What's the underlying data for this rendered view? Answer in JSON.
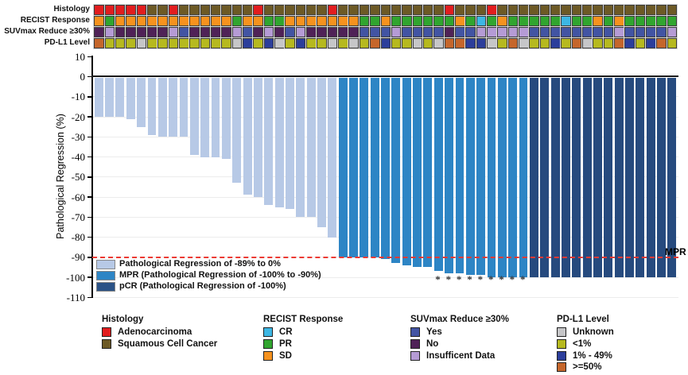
{
  "tracks": {
    "rows": [
      {
        "label": "Histology",
        "codes": "AAAAASSASSSSSSSASSSSSSASSSSSSSSSSASSSASSSSSSSSSSSSSSSSS",
        "palette": {
          "A": "#e21d1f",
          "S": "#6d5a26"
        }
      },
      {
        "label": "RECIST Response",
        "codes": "DPDDDDDDDDDDDPDDPPDDDDDDDPPDPPPPPPDPCPDPPPPPCPPDPDPPPPP",
        "palette": {
          "D": "#f6921e",
          "P": "#31a52f",
          "C": "#3db7e4"
        }
      },
      {
        "label": "SUVmax Reduce ≥30%",
        "codes": "NINNNNNIYNNNNIYNINYINNNNNYYYIYYYYNYYIIIIIYYYYYYYYIYYYYI",
        "palette": {
          "Y": "#4254a3",
          "N": "#4f2257",
          "I": "#b59bd5"
        }
      },
      {
        "label": "PD-L1 Level",
        "codes": "HLLLULLLLLLLLUMLMULMLLULULHMLLULUHHMMULHULLMLHULLHMLMHL",
        "palette": {
          "U": "#c6c6c8",
          "L": "#b6b91f",
          "M": "#2c3e9b",
          "H": "#c5662b"
        }
      }
    ]
  },
  "chart_data": {
    "type": "bar",
    "title": "",
    "xlabel": "",
    "ylabel": "Pathological Regression (%)",
    "ylim": [
      -110,
      10
    ],
    "yticks": [
      10,
      0,
      -10,
      -20,
      -30,
      -40,
      -50,
      -60,
      -70,
      -80,
      -90,
      -100,
      -110
    ],
    "grid": "horizontal-light",
    "values": [
      -20,
      -20,
      -20,
      -21,
      -25,
      -29,
      -30,
      -30,
      -30,
      -39,
      -40,
      -40,
      -41,
      -53,
      -59,
      -60,
      -64,
      -65,
      -66,
      -70,
      -70,
      -75,
      -80,
      -90,
      -90,
      -90,
      -90,
      -91,
      -93,
      -94,
      -95,
      -95,
      -97,
      -98,
      -98,
      -99,
      -99,
      -100,
      -100,
      -100,
      -100,
      -100,
      -100,
      -100,
      -100,
      -100,
      -100,
      -100,
      -100,
      -100,
      -100,
      -100,
      -100,
      -100,
      -100
    ],
    "mpr_start_column": 24,
    "pcr_start_column": 42,
    "asterisk_columns": [
      33,
      34,
      35,
      36,
      37,
      38,
      39,
      40,
      41
    ],
    "reference_line": {
      "value": -90,
      "label": "MPR",
      "color": "#ec3a33"
    },
    "bar_colors": {
      "light": "#b7c9e6",
      "mpr": "#2d85c5",
      "pcr": "#264a7e"
    },
    "series_legend": [
      {
        "key": "light",
        "label": "Pathological Regression of -89% to 0%",
        "color": "#b7c9e6"
      },
      {
        "key": "mpr",
        "label": "MPR (Pathological Regression of -100% to -90%)",
        "color": "#2d85c5"
      },
      {
        "key": "pcr",
        "label": "pCR (Pathological Regression of -100%)",
        "color": "#2b5286"
      }
    ]
  },
  "legends": [
    {
      "title": "Histology",
      "items": [
        {
          "label": "Adenocarcinoma",
          "color": "#e21d1f"
        },
        {
          "label": "Squamous Cell Cancer",
          "color": "#6d5a26"
        }
      ]
    },
    {
      "title": "RECIST Response",
      "items": [
        {
          "label": "CR",
          "color": "#3db7e4"
        },
        {
          "label": "PR",
          "color": "#31a52f"
        },
        {
          "label": "SD",
          "color": "#f6921e"
        }
      ]
    },
    {
      "title": "SUVmax Reduce ≥30%",
      "items": [
        {
          "label": "Yes",
          "color": "#4254a3"
        },
        {
          "label": "No",
          "color": "#4f2257"
        },
        {
          "label": "Insufficent Data",
          "color": "#b59bd5"
        }
      ]
    },
    {
      "title": "PD-L1 Level",
      "items": [
        {
          "label": "Unknown",
          "color": "#c6c6c8"
        },
        {
          "label": "<1%",
          "color": "#b6b91f"
        },
        {
          "label": "1% - 49%",
          "color": "#2c3e9b"
        },
        {
          "label": ">=50%",
          "color": "#c5662b"
        }
      ]
    }
  ]
}
